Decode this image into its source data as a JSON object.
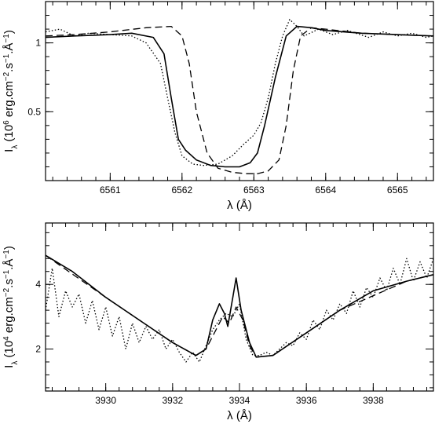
{
  "chart_data": [
    {
      "type": "line",
      "xlabel": "λ (Å)",
      "ylabel": "I_λ (10^6 erg.cm^-2.s^-1.Å^-1)",
      "ylabel_parts": {
        "symbol": "I",
        "sub": "λ",
        "pre": "(10",
        "exp_scale": "6",
        "unit1": " erg.cm",
        "exp1": "−2",
        "unit2": ".s",
        "exp2": "−1",
        "unit3": ".Å",
        "exp3": "−1",
        "post": ")"
      },
      "xlim": [
        6560.1,
        6565.5
      ],
      "ylim": [
        0.0,
        1.3
      ],
      "xticks": [
        6561,
        6562,
        6563,
        6564,
        6565
      ],
      "xtick_labels": [
        "6561",
        "6562",
        "6563",
        "6564",
        "6565"
      ],
      "yticks": [
        0.5,
        1.0
      ],
      "ytick_labels": [
        "0.5",
        "1"
      ],
      "series": [
        {
          "style": "solid",
          "x": [
            6560.1,
            6560.5,
            6561.0,
            6561.3,
            6561.6,
            6561.75,
            6561.85,
            6561.95,
            6562.05,
            6562.2,
            6562.4,
            6562.6,
            6562.8,
            6562.95,
            6563.05,
            6563.15,
            6563.3,
            6563.45,
            6563.6,
            6563.8,
            6564.0,
            6564.5,
            6565.0,
            6565.5
          ],
          "y": [
            1.04,
            1.05,
            1.06,
            1.07,
            1.04,
            0.92,
            0.6,
            0.3,
            0.22,
            0.15,
            0.11,
            0.1,
            0.1,
            0.13,
            0.2,
            0.4,
            0.75,
            1.05,
            1.12,
            1.11,
            1.09,
            1.07,
            1.06,
            1.05
          ]
        },
        {
          "style": "dashed",
          "x": [
            6560.1,
            6560.5,
            6561.0,
            6561.5,
            6561.85,
            6562.0,
            6562.1,
            6562.2,
            6562.35,
            6562.5,
            6562.7,
            6562.9,
            6563.05,
            6563.2,
            6563.35,
            6563.45,
            6563.55,
            6563.65,
            6563.8,
            6564.0,
            6564.5,
            6565.0,
            6565.5
          ],
          "y": [
            1.05,
            1.06,
            1.08,
            1.11,
            1.12,
            1.05,
            0.85,
            0.5,
            0.2,
            0.09,
            0.06,
            0.05,
            0.05,
            0.07,
            0.15,
            0.4,
            0.8,
            1.05,
            1.11,
            1.1,
            1.07,
            1.06,
            1.05
          ]
        },
        {
          "style": "dotted",
          "x": [
            6560.1,
            6560.3,
            6560.5,
            6560.7,
            6561.0,
            6561.3,
            6561.5,
            6561.7,
            6561.8,
            6561.9,
            6562.0,
            6562.15,
            6562.3,
            6562.5,
            6562.7,
            6562.85,
            6563.0,
            6563.1,
            6563.2,
            6563.3,
            6563.4,
            6563.5,
            6563.6,
            6563.7,
            6563.9,
            6564.1,
            6564.3,
            6564.6,
            6564.8,
            6565.0,
            6565.2,
            6565.4,
            6565.5
          ],
          "y": [
            1.08,
            1.1,
            1.05,
            1.07,
            1.06,
            1.05,
            1.0,
            0.85,
            0.6,
            0.35,
            0.18,
            0.12,
            0.11,
            0.12,
            0.18,
            0.26,
            0.33,
            0.42,
            0.6,
            0.85,
            1.05,
            1.17,
            1.12,
            1.05,
            1.1,
            1.06,
            1.09,
            1.04,
            1.08,
            1.05,
            1.07,
            1.04,
            1.05
          ]
        }
      ]
    },
    {
      "type": "line",
      "xlabel": "λ (Å)",
      "ylabel": "I_λ (10^4 erg.cm^-2.s^-1.Å^-1)",
      "ylabel_parts": {
        "symbol": "I",
        "sub": "λ",
        "pre": "(10",
        "exp_scale": "4",
        "unit1": " erg.cm",
        "exp1": "−2",
        "unit2": ".s",
        "exp2": "−1",
        "unit3": ".Å",
        "exp3": "−1",
        "post": ")"
      },
      "xlim": [
        3928.2,
        3939.8
      ],
      "ylim": [
        0.7,
        5.9
      ],
      "xticks": [
        3930,
        3932,
        3934,
        3936,
        3938
      ],
      "xtick_labels": [
        "3930",
        "3932",
        "3934",
        "3936",
        "3938"
      ],
      "yticks": [
        2,
        4
      ],
      "ytick_labels": [
        "2",
        "4"
      ],
      "series": [
        {
          "style": "solid",
          "x": [
            3928.2,
            3929.0,
            3930.0,
            3931.0,
            3932.0,
            3932.7,
            3933.0,
            3933.2,
            3933.4,
            3933.55,
            3933.65,
            3933.8,
            3933.9,
            3934.05,
            3934.3,
            3934.5,
            3935.0,
            3936.0,
            3937.0,
            3938.0,
            3939.0,
            3939.8
          ],
          "y": [
            4.9,
            4.4,
            3.6,
            2.9,
            2.2,
            1.8,
            2.0,
            2.9,
            3.4,
            3.1,
            2.7,
            3.6,
            4.2,
            3.2,
            2.2,
            1.75,
            1.8,
            2.5,
            3.2,
            3.8,
            4.1,
            4.3
          ]
        },
        {
          "style": "dashed",
          "x": [
            3928.2,
            3930.0,
            3932.0,
            3932.7,
            3933.0,
            3933.3,
            3933.5,
            3933.7,
            3933.9,
            3934.1,
            3934.3,
            3934.5,
            3935.0,
            3937.0,
            3939.0,
            3939.8
          ],
          "y": [
            4.9,
            3.6,
            2.2,
            1.8,
            2.0,
            2.6,
            3.0,
            2.8,
            3.3,
            2.9,
            2.1,
            1.75,
            1.8,
            3.2,
            4.1,
            4.3
          ]
        },
        {
          "style": "dotted",
          "x": [
            3928.2,
            3928.4,
            3928.6,
            3928.8,
            3929.0,
            3929.2,
            3929.4,
            3929.6,
            3929.8,
            3930.0,
            3930.2,
            3930.4,
            3930.6,
            3930.8,
            3931.0,
            3931.2,
            3931.4,
            3931.6,
            3931.8,
            3932.0,
            3932.2,
            3932.4,
            3932.6,
            3932.8,
            3933.0,
            3933.2,
            3933.4,
            3933.6,
            3933.8,
            3934.0,
            3934.2,
            3934.4,
            3934.6,
            3934.8,
            3935.0,
            3935.2,
            3935.4,
            3935.6,
            3935.8,
            3936.0,
            3936.2,
            3936.4,
            3936.6,
            3936.8,
            3937.0,
            3937.2,
            3937.4,
            3937.6,
            3937.8,
            3938.0,
            3938.2,
            3938.4,
            3938.6,
            3938.8,
            3939.0,
            3939.2,
            3939.4,
            3939.6,
            3939.8
          ],
          "y": [
            3.2,
            4.5,
            3.0,
            3.8,
            3.3,
            3.7,
            2.8,
            3.5,
            2.6,
            3.3,
            2.4,
            3.0,
            2.0,
            2.8,
            2.2,
            2.7,
            2.3,
            2.6,
            2.0,
            2.3,
            1.9,
            1.6,
            1.9,
            1.6,
            2.1,
            2.6,
            2.9,
            3.1,
            3.0,
            3.4,
            2.3,
            1.8,
            1.8,
            1.9,
            1.8,
            2.0,
            2.2,
            2.1,
            2.5,
            2.3,
            2.9,
            2.6,
            3.2,
            2.9,
            3.4,
            3.1,
            3.8,
            3.3,
            3.9,
            3.6,
            4.2,
            3.8,
            4.5,
            4.0,
            4.8,
            4.1,
            4.7,
            4.2,
            4.8
          ]
        }
      ]
    }
  ]
}
